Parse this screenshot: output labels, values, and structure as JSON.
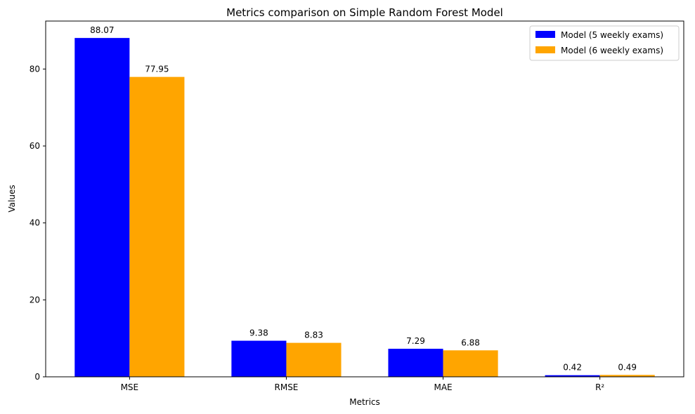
{
  "chart_data": {
    "type": "bar",
    "title": "Metrics comparison on Simple Random Forest Model",
    "xlabel": "Metrics",
    "ylabel": "Values",
    "categories": [
      "MSE",
      "RMSE",
      "MAE",
      "R²"
    ],
    "ylim": [
      0,
      92.47
    ],
    "yticks": [
      0,
      20,
      40,
      60,
      80
    ],
    "series": [
      {
        "name": "Model (5 weekly exams)",
        "color": "#0000ff",
        "values": [
          88.07,
          9.38,
          7.29,
          0.42
        ],
        "labels": [
          "88.07",
          "9.38",
          "7.29",
          "0.42"
        ]
      },
      {
        "name": "Model (6 weekly exams)",
        "color": "#ffa500",
        "values": [
          77.95,
          8.83,
          6.88,
          0.49
        ],
        "labels": [
          "77.95",
          "8.83",
          "6.88",
          "0.49"
        ]
      }
    ],
    "legend_position": "top-right"
  }
}
